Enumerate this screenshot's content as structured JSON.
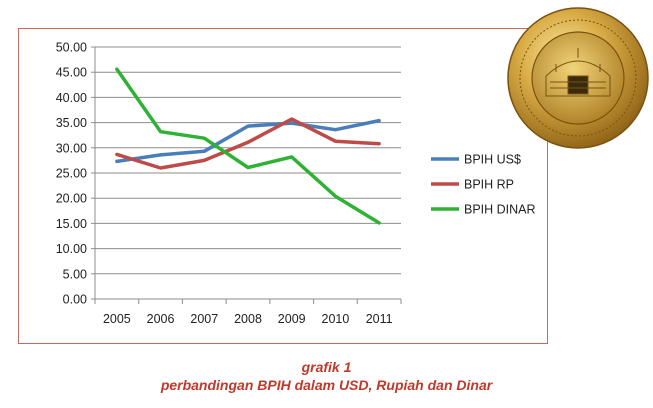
{
  "chart_data": {
    "type": "line",
    "categories": [
      "2005",
      "2006",
      "2007",
      "2008",
      "2009",
      "2010",
      "2011"
    ],
    "series": [
      {
        "name": "BPIH US$",
        "color": "#4a7ebb",
        "values": [
          27.3,
          28.6,
          29.3,
          34.3,
          34.9,
          33.6,
          35.4
        ]
      },
      {
        "name": "BPIH RP",
        "color": "#be4b48",
        "values": [
          28.7,
          26.0,
          27.5,
          31.1,
          35.7,
          31.3,
          30.8
        ]
      },
      {
        "name": "BPIH DINAR",
        "color": "#2eb135",
        "values": [
          45.6,
          33.2,
          31.9,
          26.1,
          28.2,
          20.4,
          15.1
        ]
      }
    ],
    "y_ticks": [
      "50.00",
      "45.00",
      "40.00",
      "35.00",
      "30.00",
      "25.00",
      "20.00",
      "15.00",
      "10.00",
      "5.00",
      "0.00"
    ],
    "ylim": [
      0,
      50
    ],
    "grid": true,
    "legend_position": "right"
  },
  "caption": {
    "line1": "grafik 1",
    "line2": "perbandingan BPIH dalam USD, Rupiah dan Dinar"
  },
  "coin": {
    "description_icon": "gold-dinar-coin-icon",
    "color": "#c99a2e"
  }
}
